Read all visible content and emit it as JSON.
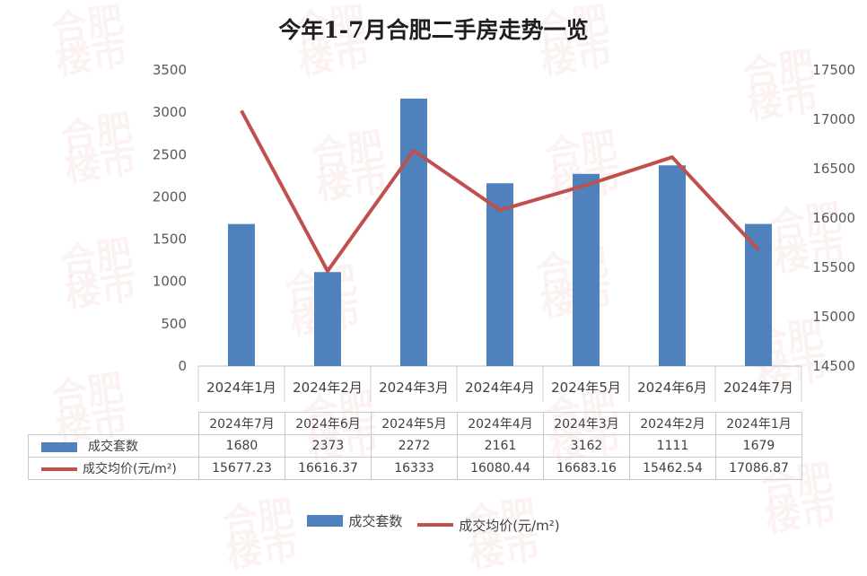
{
  "chart_data": {
    "type": "bar",
    "title": "今年1-7月合肥二手房走势一览",
    "categories": [
      "2024年1月",
      "2024年2月",
      "2024年3月",
      "2024年4月",
      "2024年5月",
      "2024年6月",
      "2024年7月"
    ],
    "series": [
      {
        "name": "成交套数",
        "type": "bar",
        "axis": "left",
        "color": "#4f81bd",
        "values": [
          1679,
          1111,
          3162,
          2161,
          2272,
          2373,
          1680
        ]
      },
      {
        "name": "成交均价(元/m²)",
        "type": "line",
        "axis": "right",
        "color": "#c0504d",
        "values": [
          17086.87,
          15462.54,
          16683.16,
          16080.44,
          16333,
          16616.37,
          15677.23
        ]
      }
    ],
    "y_left": {
      "min": 0,
      "max": 3500,
      "step": 500,
      "ticks": [
        "0",
        "500",
        "1000",
        "1500",
        "2000",
        "2500",
        "3000",
        "3500"
      ]
    },
    "y_right": {
      "min": 14500,
      "max": 17500,
      "step": 500,
      "ticks": [
        "14500",
        "15000",
        "15500",
        "16000",
        "16500",
        "17000",
        "17500"
      ]
    },
    "grid": false,
    "legend_position": "bottom",
    "data_table": {
      "columns": [
        "2024年7月",
        "2024年6月",
        "2024年5月",
        "2024年4月",
        "2024年3月",
        "2024年2月",
        "2024年1月"
      ],
      "rows": [
        {
          "label": "成交套数",
          "key": "bar",
          "values": [
            "1680",
            "2373",
            "2272",
            "2161",
            "3162",
            "1111",
            "1679"
          ]
        },
        {
          "label": "成交均价(元/m²)",
          "key": "line",
          "values": [
            "15677.23",
            "16616.37",
            "16333",
            "16080.44",
            "16683.16",
            "15462.54",
            "17086.87"
          ]
        }
      ]
    }
  },
  "watermark_text": [
    "合肥",
    "楼市"
  ]
}
